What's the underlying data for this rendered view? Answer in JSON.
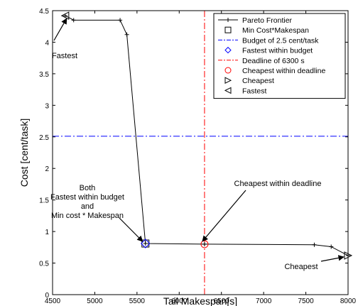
{
  "chart_data": {
    "type": "line",
    "xlabel": "Tail Makespan[s]",
    "ylabel": "Cost [cent/task]",
    "xlim": [
      4500,
      8000
    ],
    "ylim": [
      0,
      4.5
    ],
    "xticks": [
      4500,
      5000,
      5500,
      6000,
      6500,
      7000,
      7500,
      8000
    ],
    "yticks": [
      0,
      0.5,
      1,
      1.5,
      2,
      2.5,
      3,
      3.5,
      4,
      4.5
    ],
    "grid": false,
    "legend_position": "top-right",
    "series": [
      {
        "name": "Pareto Frontier",
        "style": "black solid line with plus markers",
        "x": [
          4650,
          4750,
          5300,
          5380,
          5600,
          6300,
          7600,
          7800,
          8000
        ],
        "y": [
          4.42,
          4.35,
          4.35,
          4.12,
          0.81,
          0.8,
          0.79,
          0.76,
          0.62
        ]
      },
      {
        "name": "Min Cost*Makespan",
        "style": "black square marker",
        "x": [
          5600
        ],
        "y": [
          0.81
        ]
      },
      {
        "name": "Budget of 2.5 cent/task",
        "style": "blue dash-dot horizontal line",
        "y_value": 2.51
      },
      {
        "name": "Fastest within budget",
        "style": "blue diamond marker",
        "x": [
          5600
        ],
        "y": [
          0.81
        ]
      },
      {
        "name": "Deadline of 6300 s",
        "style": "red dash-dot vertical line",
        "x_value": 6300
      },
      {
        "name": "Cheapest within deadline",
        "style": "red circle marker",
        "x": [
          6300
        ],
        "y": [
          0.8
        ]
      },
      {
        "name": "Cheapest",
        "style": "black right-pointing triangle marker",
        "x": [
          8000
        ],
        "y": [
          0.62
        ]
      },
      {
        "name": "Fastest",
        "style": "black left-pointing triangle marker",
        "x": [
          4650
        ],
        "y": [
          4.42
        ]
      }
    ],
    "annotations": [
      {
        "lines": [
          "Fastest"
        ],
        "arrow_to": [
          4650,
          4.42
        ]
      },
      {
        "lines": [
          "Both",
          "Fastest within budget",
          "and",
          "Min cost * Makespan"
        ],
        "arrow_to": [
          5600,
          0.81
        ]
      },
      {
        "lines": [
          "Cheapest within deadline"
        ],
        "arrow_to": [
          6300,
          0.8
        ]
      },
      {
        "lines": [
          "Cheapest"
        ],
        "arrow_to": [
          8000,
          0.62
        ]
      }
    ],
    "colors": {
      "budget_line": "#0000ff",
      "deadline_line": "#ff0000",
      "frontier": "#000000"
    }
  }
}
